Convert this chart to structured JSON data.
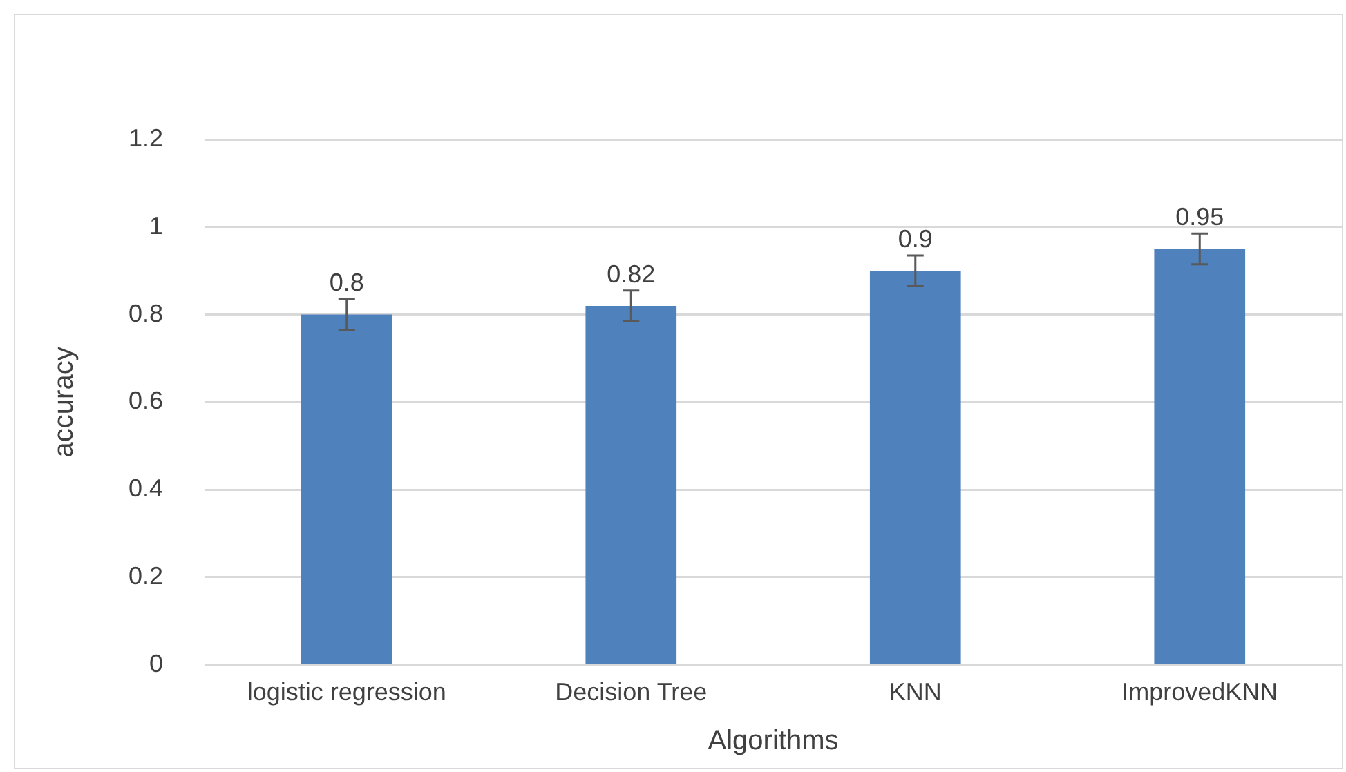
{
  "chart_data": {
    "type": "bar",
    "xlabel": "Algorithms",
    "ylabel": "accuracy",
    "categories": [
      "logistic regression",
      "Decision Tree",
      "KNN",
      "ImprovedKNN"
    ],
    "values": [
      0.8,
      0.82,
      0.9,
      0.95
    ],
    "errors": [
      0.035,
      0.035,
      0.035,
      0.035
    ],
    "color": "#4f81bd",
    "ylim": [
      0,
      1.2
    ],
    "yticks": [
      0,
      0.2,
      0.4,
      0.6,
      0.8,
      1,
      1.2
    ],
    "grid": "y",
    "legend": false,
    "data_labels": true
  }
}
